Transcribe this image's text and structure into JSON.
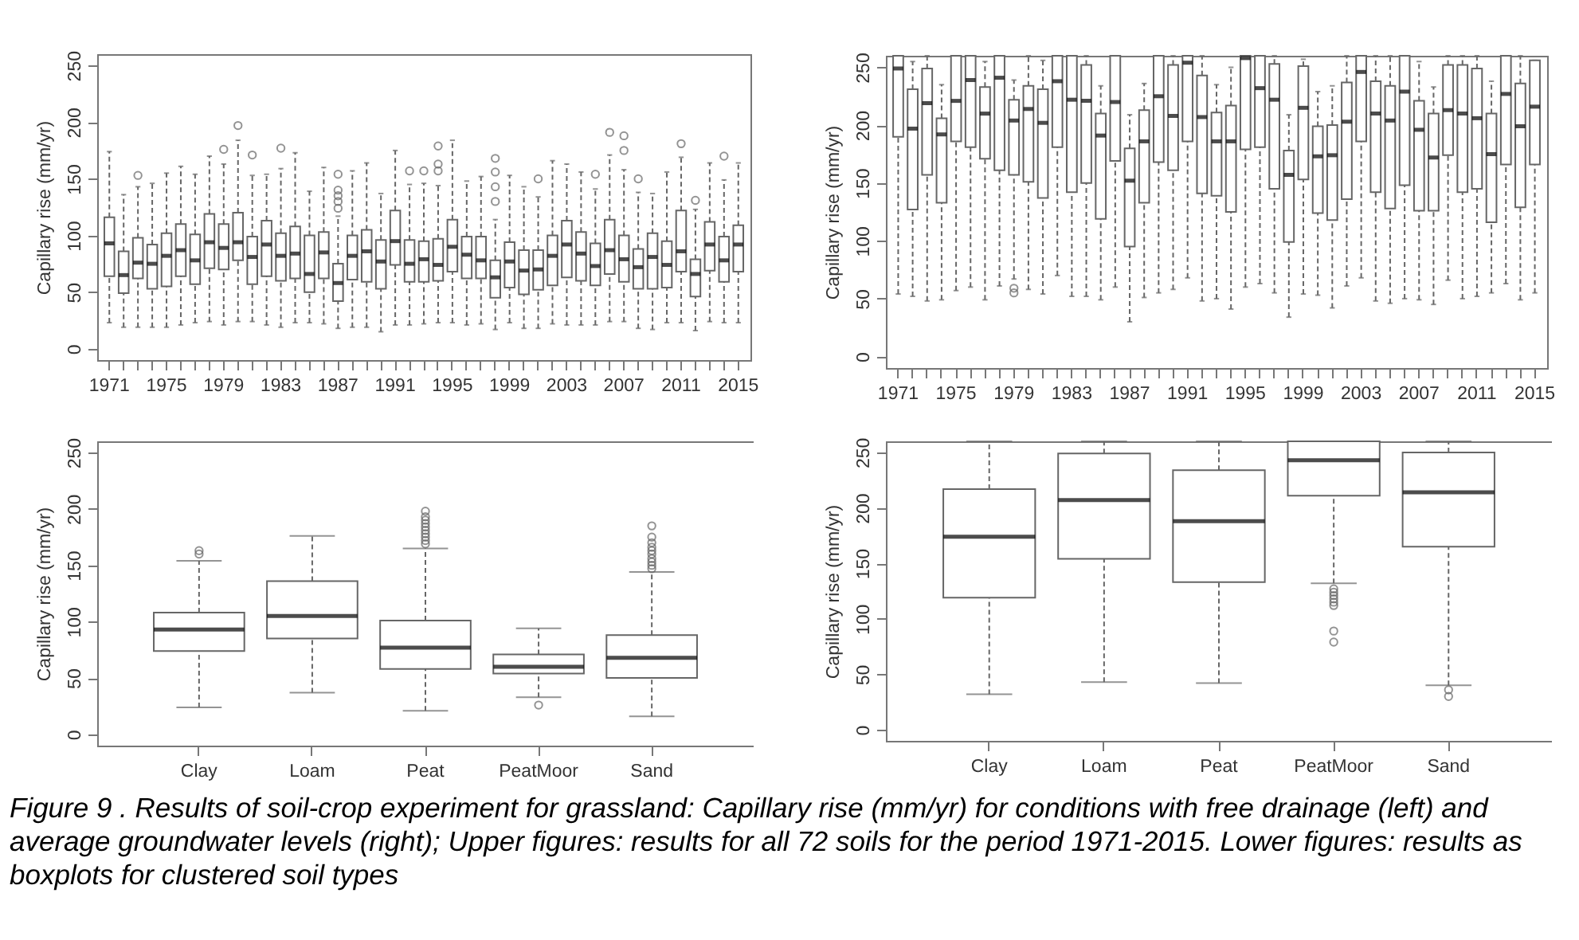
{
  "chart_data": [
    {
      "type": "box",
      "ylabel": "Capillary rise (mm/yr)",
      "ylim": [
        -10,
        260
      ],
      "yticks": [
        0,
        50,
        100,
        150,
        200,
        250
      ],
      "categories": [
        "1971",
        null,
        null,
        null,
        "1975",
        null,
        null,
        null,
        "1979",
        null,
        null,
        null,
        "1983",
        null,
        null,
        null,
        "1987",
        null,
        null,
        null,
        "1991",
        null,
        null,
        null,
        "1995",
        null,
        null,
        null,
        "1999",
        null,
        null,
        null,
        "2003",
        null,
        null,
        null,
        "2007",
        null,
        null,
        null,
        "2011",
        null,
        null,
        null,
        "2015"
      ],
      "boxes": [
        {
          "low": 23,
          "q1": 64,
          "median": 93,
          "q3": 116,
          "high": 174
        },
        {
          "low": 19,
          "q1": 49,
          "median": 65,
          "q3": 86,
          "high": 136
        },
        {
          "low": 19,
          "q1": 62,
          "median": 76,
          "q3": 98,
          "high": 143,
          "outliers": [
            153
          ]
        },
        {
          "low": 19,
          "q1": 53,
          "median": 75,
          "q3": 92,
          "high": 146
        },
        {
          "low": 19,
          "q1": 55,
          "median": 82,
          "q3": 102,
          "high": 155
        },
        {
          "low": 21,
          "q1": 64,
          "median": 87,
          "q3": 110,
          "high": 161
        },
        {
          "low": 23,
          "q1": 57,
          "median": 78,
          "q3": 101,
          "high": 154
        },
        {
          "low": 24,
          "q1": 71,
          "median": 94,
          "q3": 119,
          "high": 170
        },
        {
          "low": 21,
          "q1": 70,
          "median": 89,
          "q3": 110,
          "high": 163,
          "outliers": [
            176
          ]
        },
        {
          "low": 24,
          "q1": 78,
          "median": 94,
          "q3": 120,
          "high": 184,
          "outliers": [
            197
          ]
        },
        {
          "low": 24,
          "q1": 57,
          "median": 81,
          "q3": 99,
          "high": 153,
          "outliers": [
            171
          ]
        },
        {
          "low": 21,
          "q1": 64,
          "median": 92,
          "q3": 113,
          "high": 154
        },
        {
          "low": 19,
          "q1": 60,
          "median": 82,
          "q3": 102,
          "high": 159,
          "outliers": [
            177
          ]
        },
        {
          "low": 23,
          "q1": 62,
          "median": 84,
          "q3": 108,
          "high": 173
        },
        {
          "low": 23,
          "q1": 50,
          "median": 66,
          "q3": 100,
          "high": 139
        },
        {
          "low": 22,
          "q1": 62,
          "median": 85,
          "q3": 103,
          "high": 160
        },
        {
          "low": 18,
          "q1": 42,
          "median": 58,
          "q3": 75,
          "high": 117,
          "outliers": [
            124,
            130,
            135,
            140,
            154
          ]
        },
        {
          "low": 19,
          "q1": 61,
          "median": 82,
          "q3": 100,
          "high": 157
        },
        {
          "low": 19,
          "q1": 59,
          "median": 86,
          "q3": 105,
          "high": 164
        },
        {
          "low": 15,
          "q1": 53,
          "median": 77,
          "q3": 96,
          "high": 137
        },
        {
          "low": 21,
          "q1": 74,
          "median": 95,
          "q3": 122,
          "high": 175
        },
        {
          "low": 21,
          "q1": 59,
          "median": 75,
          "q3": 96,
          "high": 145,
          "outliers": [
            157
          ]
        },
        {
          "low": 22,
          "q1": 59,
          "median": 79,
          "q3": 95,
          "high": 146,
          "outliers": [
            157
          ]
        },
        {
          "low": 23,
          "q1": 60,
          "median": 74,
          "q3": 97,
          "high": 144,
          "outliers": [
            157,
            163,
            179
          ]
        },
        {
          "low": 23,
          "q1": 68,
          "median": 90,
          "q3": 114,
          "high": 184
        },
        {
          "low": 21,
          "q1": 62,
          "median": 83,
          "q3": 99,
          "high": 148
        },
        {
          "low": 22,
          "q1": 62,
          "median": 78,
          "q3": 99,
          "high": 152
        },
        {
          "low": 17,
          "q1": 45,
          "median": 63,
          "q3": 78,
          "high": 114,
          "outliers": [
            130,
            143,
            156,
            168
          ]
        },
        {
          "low": 23,
          "q1": 54,
          "median": 77,
          "q3": 94,
          "high": 153
        },
        {
          "low": 18,
          "q1": 48,
          "median": 69,
          "q3": 87,
          "high": 143
        },
        {
          "low": 18,
          "q1": 52,
          "median": 70,
          "q3": 87,
          "high": 134,
          "outliers": [
            150
          ]
        },
        {
          "low": 22,
          "q1": 56,
          "median": 82,
          "q3": 100,
          "high": 166
        },
        {
          "low": 21,
          "q1": 63,
          "median": 92,
          "q3": 113,
          "high": 163
        },
        {
          "low": 21,
          "q1": 60,
          "median": 84,
          "q3": 103,
          "high": 156
        },
        {
          "low": 21,
          "q1": 56,
          "median": 73,
          "q3": 93,
          "high": 141,
          "outliers": [
            154
          ]
        },
        {
          "low": 24,
          "q1": 66,
          "median": 87,
          "q3": 114,
          "high": 171,
          "outliers": [
            191
          ]
        },
        {
          "low": 24,
          "q1": 59,
          "median": 79,
          "q3": 100,
          "high": 158,
          "outliers": [
            175,
            188
          ]
        },
        {
          "low": 18,
          "q1": 53,
          "median": 72,
          "q3": 88,
          "high": 138,
          "outliers": [
            150
          ]
        },
        {
          "low": 17,
          "q1": 53,
          "median": 81,
          "q3": 102,
          "high": 137
        },
        {
          "low": 23,
          "q1": 54,
          "median": 74,
          "q3": 95,
          "high": 156
        },
        {
          "low": 23,
          "q1": 68,
          "median": 86,
          "q3": 122,
          "high": 169,
          "outliers": [
            181
          ]
        },
        {
          "low": 16,
          "q1": 46,
          "median": 66,
          "q3": 79,
          "high": 123,
          "outliers": [
            131
          ]
        },
        {
          "low": 24,
          "q1": 69,
          "median": 92,
          "q3": 112,
          "high": 164
        },
        {
          "low": 23,
          "q1": 59,
          "median": 78,
          "q3": 99,
          "high": 149,
          "outliers": [
            170
          ]
        },
        {
          "low": 23,
          "q1": 68,
          "median": 92,
          "q3": 109,
          "high": 164
        }
      ]
    },
    {
      "type": "box",
      "ylabel": "Capillary rise (mm/yr)",
      "ylim": [
        -10,
        260
      ],
      "yticks": [
        0,
        50,
        100,
        150,
        200,
        250
      ],
      "categories": [
        "1971",
        null,
        null,
        null,
        "1975",
        null,
        null,
        null,
        "1979",
        null,
        null,
        null,
        "1983",
        null,
        null,
        null,
        "1987",
        null,
        null,
        null,
        "1991",
        null,
        null,
        null,
        "1995",
        null,
        null,
        null,
        "1999",
        null,
        null,
        null,
        "2003",
        null,
        null,
        null,
        "2007",
        null,
        null,
        null,
        "2011",
        null,
        null,
        null,
        "2015"
      ],
      "boxes": [
        {
          "low": 54,
          "q1": 190,
          "median": 249,
          "q3": 260,
          "high": 260
        },
        {
          "low": 52,
          "q1": 127,
          "median": 197,
          "q3": 231,
          "high": 255
        },
        {
          "low": 48,
          "q1": 157,
          "median": 219,
          "q3": 249,
          "high": 260
        },
        {
          "low": 49,
          "q1": 133,
          "median": 192,
          "q3": 206,
          "high": 235
        },
        {
          "low": 57,
          "q1": 186,
          "median": 221,
          "q3": 260,
          "high": 260
        },
        {
          "low": 60,
          "q1": 181,
          "median": 239,
          "q3": 260,
          "high": 260
        },
        {
          "low": 49,
          "q1": 171,
          "median": 210,
          "q3": 233,
          "high": 255
        },
        {
          "low": 61,
          "q1": 161,
          "median": 241,
          "q3": 260,
          "high": 260
        },
        {
          "low": 67,
          "q1": 157,
          "median": 204,
          "q3": 222,
          "high": 239,
          "outliers": [
            55,
            59
          ]
        },
        {
          "low": 58,
          "q1": 151,
          "median": 214,
          "q3": 234,
          "high": 260
        },
        {
          "low": 54,
          "q1": 137,
          "median": 202,
          "q3": 231,
          "high": 256
        },
        {
          "low": 70,
          "q1": 181,
          "median": 238,
          "q3": 260,
          "high": 260
        },
        {
          "low": 52,
          "q1": 142,
          "median": 222,
          "q3": 260,
          "high": 260
        },
        {
          "low": 52,
          "q1": 150,
          "median": 221,
          "q3": 252,
          "high": 260
        },
        {
          "low": 49,
          "q1": 119,
          "median": 191,
          "q3": 210,
          "high": 234
        },
        {
          "low": 60,
          "q1": 169,
          "median": 220,
          "q3": 260,
          "high": 260
        },
        {
          "low": 30,
          "q1": 95,
          "median": 152,
          "q3": 180,
          "high": 209
        },
        {
          "low": 51,
          "q1": 133,
          "median": 186,
          "q3": 213,
          "high": 236
        },
        {
          "low": 55,
          "q1": 168,
          "median": 225,
          "q3": 260,
          "high": 260
        },
        {
          "low": 58,
          "q1": 161,
          "median": 208,
          "q3": 252,
          "high": 260
        },
        {
          "low": 68,
          "q1": 186,
          "median": 254,
          "q3": 260,
          "high": 260
        },
        {
          "low": 48,
          "q1": 141,
          "median": 207,
          "q3": 243,
          "high": 260
        },
        {
          "low": 50,
          "q1": 139,
          "median": 186,
          "q3": 211,
          "high": 235
        },
        {
          "low": 41,
          "q1": 125,
          "median": 186,
          "q3": 217,
          "high": 250
        },
        {
          "low": 60,
          "q1": 179,
          "median": 258,
          "q3": 260,
          "high": 260
        },
        {
          "low": 63,
          "q1": 181,
          "median": 232,
          "q3": 260,
          "high": 260
        },
        {
          "low": 55,
          "q1": 145,
          "median": 222,
          "q3": 253,
          "high": 260
        },
        {
          "low": 34,
          "q1": 99,
          "median": 157,
          "q3": 178,
          "high": 209
        },
        {
          "low": 54,
          "q1": 153,
          "median": 215,
          "q3": 251,
          "high": 257
        },
        {
          "low": 53,
          "q1": 124,
          "median": 173,
          "q3": 199,
          "high": 229
        },
        {
          "low": 42,
          "q1": 118,
          "median": 174,
          "q3": 200,
          "high": 234
        },
        {
          "low": 61,
          "q1": 136,
          "median": 203,
          "q3": 237,
          "high": 260
        },
        {
          "low": 68,
          "q1": 186,
          "median": 246,
          "q3": 260,
          "high": 260
        },
        {
          "low": 48,
          "q1": 142,
          "median": 210,
          "q3": 238,
          "high": 260
        },
        {
          "low": 46,
          "q1": 128,
          "median": 204,
          "q3": 234,
          "high": 260
        },
        {
          "low": 50,
          "q1": 148,
          "median": 229,
          "q3": 260,
          "high": 260
        },
        {
          "low": 49,
          "q1": 126,
          "median": 196,
          "q3": 221,
          "high": 255
        },
        {
          "low": 45,
          "q1": 126,
          "median": 172,
          "q3": 210,
          "high": 233
        },
        {
          "low": 66,
          "q1": 174,
          "median": 213,
          "q3": 252,
          "high": 260
        },
        {
          "low": 50,
          "q1": 142,
          "median": 210,
          "q3": 252,
          "high": 260
        },
        {
          "low": 52,
          "q1": 145,
          "median": 206,
          "q3": 249,
          "high": 260
        },
        {
          "low": 55,
          "q1": 116,
          "median": 175,
          "q3": 210,
          "high": 238
        },
        {
          "low": 63,
          "q1": 166,
          "median": 227,
          "q3": 260,
          "high": 260
        },
        {
          "low": 49,
          "q1": 129,
          "median": 199,
          "q3": 236,
          "high": 260
        },
        {
          "low": 55,
          "q1": 166,
          "median": 216,
          "q3": 256,
          "high": 256
        }
      ]
    },
    {
      "type": "box",
      "ylabel": "Capillary rise (mm/yr)",
      "ylim": [
        -10,
        260
      ],
      "yticks": [
        0,
        50,
        100,
        150,
        200,
        250
      ],
      "categories": [
        "Clay",
        "Loam",
        "Peat",
        "PeatMoor",
        "Sand"
      ],
      "boxes": [
        {
          "low": 24,
          "q1": 74,
          "median": 93,
          "q3": 108,
          "high": 154,
          "outliers": [
            160,
            163
          ]
        },
        {
          "low": 37,
          "q1": 85,
          "median": 105,
          "q3": 136,
          "high": 176
        },
        {
          "low": 21,
          "q1": 58,
          "median": 77,
          "q3": 101,
          "high": 165,
          "outliers": [
            169,
            172,
            175,
            178,
            181,
            184,
            187,
            190,
            193,
            198
          ]
        },
        {
          "low": 33,
          "q1": 54,
          "median": 60,
          "q3": 71,
          "high": 94,
          "outliers": [
            26
          ]
        },
        {
          "low": 16,
          "q1": 50,
          "median": 68,
          "q3": 88,
          "high": 144,
          "outliers": [
            147,
            150,
            153,
            156,
            160,
            163,
            166,
            170,
            175,
            185
          ]
        }
      ]
    },
    {
      "type": "box",
      "ylabel": "Capillary rise (mm/yr)",
      "ylim": [
        -10,
        260
      ],
      "yticks": [
        0,
        50,
        100,
        150,
        200,
        250
      ],
      "categories": [
        "Clay",
        "Loam",
        "Peat",
        "PeatMoor",
        "Sand"
      ],
      "boxes": [
        {
          "low": 32,
          "q1": 119,
          "median": 174,
          "q3": 217,
          "high": 260
        },
        {
          "low": 43,
          "q1": 154,
          "median": 207,
          "q3": 249,
          "high": 260
        },
        {
          "low": 42,
          "q1": 133,
          "median": 188,
          "q3": 234,
          "high": 260
        },
        {
          "low": 132,
          "q1": 211,
          "median": 243,
          "q3": 260,
          "high": 260,
          "outliers": [
            79,
            89,
            112,
            115,
            118,
            121,
            124,
            127
          ]
        },
        {
          "low": 40,
          "q1": 165,
          "median": 214,
          "q3": 250,
          "high": 260,
          "outliers": [
            30,
            36
          ]
        }
      ],
      "annotations": [
        "Figure 9 . Results of soil-crop experiment for grassland: Capillary rise (mm/yr) for conditions with free drainage (left) and average groundwater levels (right); Upper figures: results for all 72 soils for the period 1971-2015. Lower figures: results as boxplots for clustered soil types"
      ]
    }
  ]
}
